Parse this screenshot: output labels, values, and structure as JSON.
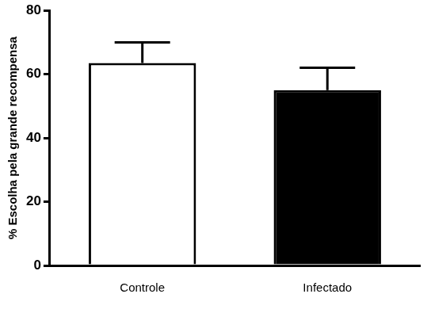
{
  "chart_data": {
    "type": "bar",
    "y_label": "% Escolha pela grande recompensa",
    "categories": [
      "Controle",
      "Infectado"
    ],
    "values": [
      63.5,
      55
    ],
    "errors": [
      6.5,
      7
    ],
    "colors": [
      "#ffffff",
      "#000000"
    ],
    "ylim": [
      0,
      80
    ],
    "yticks": [
      0,
      20,
      40,
      60,
      80
    ],
    "grid": false
  }
}
